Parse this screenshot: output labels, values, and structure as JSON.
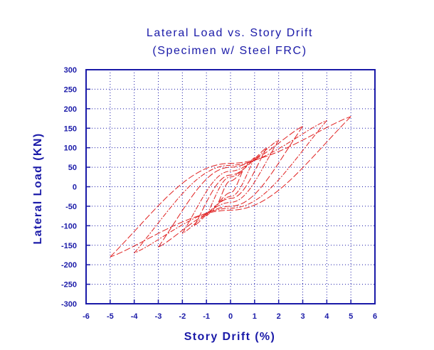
{
  "chart_data": {
    "type": "line",
    "title": "Lateral Load vs. Story Drift",
    "subtitle": "(Specimen w/ Steel FRC)",
    "xlabel": "Story Drift (%)",
    "ylabel": "Lateral Load (KN)",
    "xlim": [
      -6,
      6
    ],
    "ylim": [
      -300,
      300
    ],
    "xticks": [
      "-6",
      "-5",
      "-4",
      "-3",
      "-2",
      "-1",
      "0",
      "1",
      "2",
      "3",
      "4",
      "5",
      "6"
    ],
    "yticks": [
      "300",
      "250",
      "200",
      "150",
      "100",
      "50",
      "0",
      "-50",
      "-100",
      "-150",
      "-200",
      "-250",
      "-300"
    ],
    "grid": true,
    "series": [
      {
        "loops": [
          {
            "drift_peak": 0.5,
            "load_peak": 40,
            "load_zero_pos": 15,
            "load_zero_neg": -15
          },
          {
            "drift_peak": 1.0,
            "load_peak": 75,
            "load_zero_pos": 25,
            "load_zero_neg": -25
          },
          {
            "drift_peak": 1.5,
            "load_peak": 100,
            "load_zero_pos": 30,
            "load_zero_neg": -30
          },
          {
            "drift_peak": 2.0,
            "load_peak": 120,
            "load_zero_pos": 40,
            "load_zero_neg": -40
          },
          {
            "drift_peak": 3.0,
            "load_peak": 155,
            "load_zero_pos": 50,
            "load_zero_neg": -50
          },
          {
            "drift_peak": 4.0,
            "load_peak": 170,
            "load_zero_pos": 55,
            "load_zero_neg": -55
          },
          {
            "drift_peak": 5.0,
            "load_peak": 180,
            "load_zero_pos": 60,
            "load_zero_neg": -60
          }
        ]
      }
    ]
  },
  "colors": {
    "text": "#1a1aa8",
    "axis": "#1a1aa8",
    "grid": "#1a1aa8",
    "series": "#e02020"
  }
}
